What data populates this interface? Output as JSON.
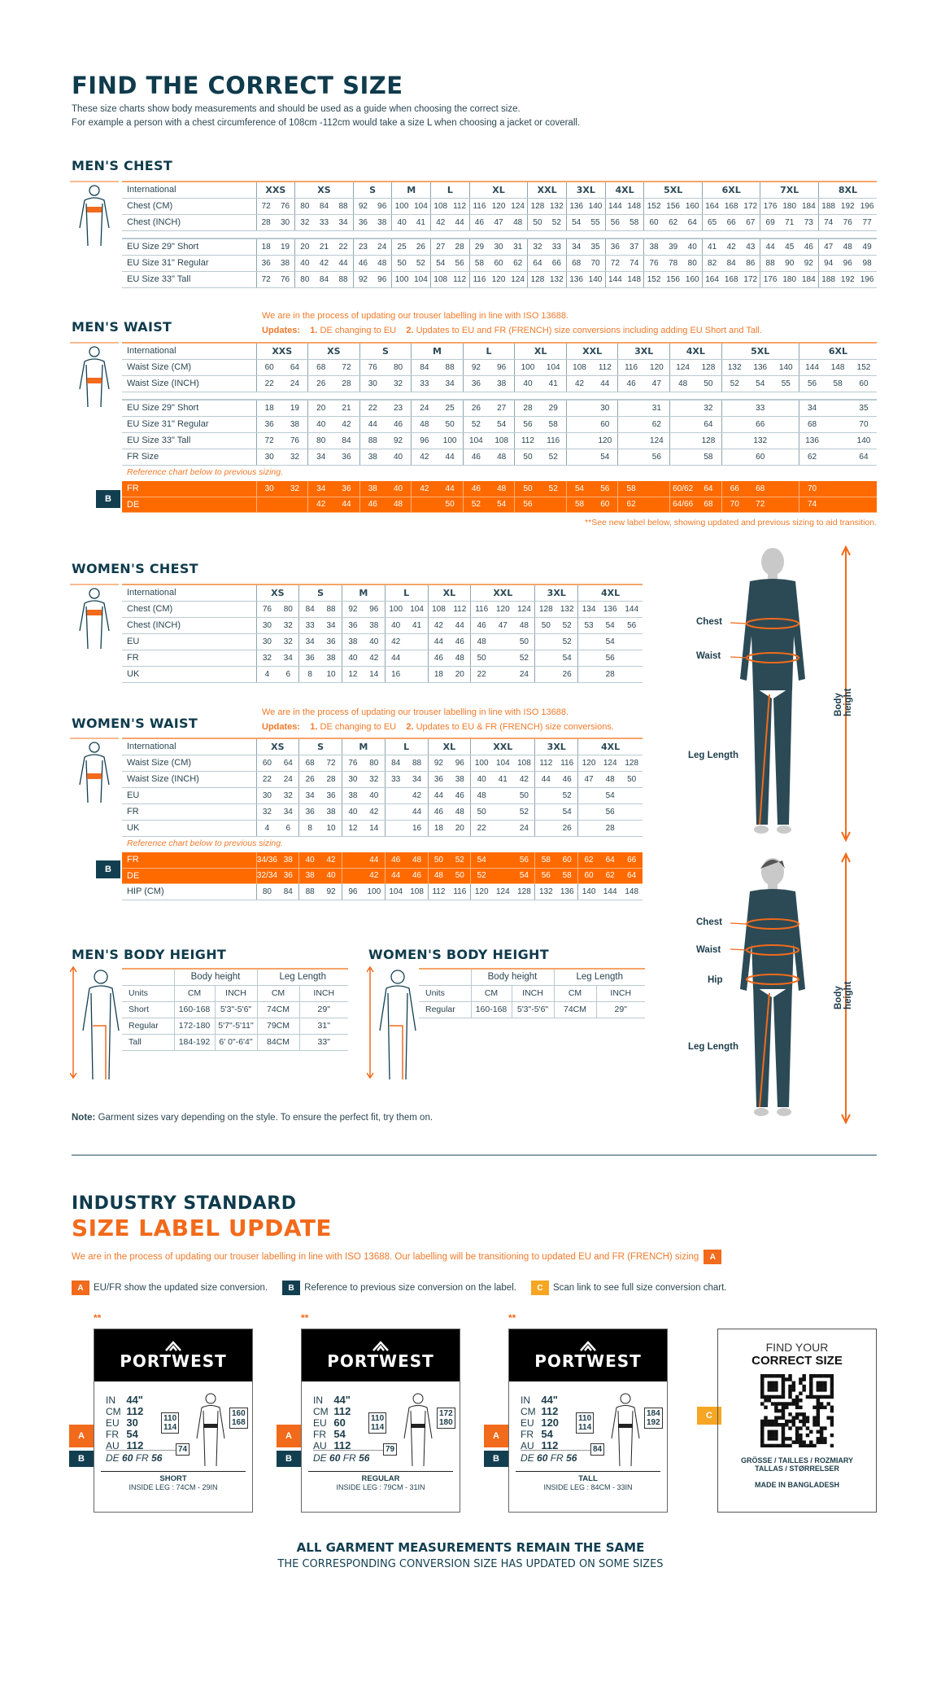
{
  "header": {
    "title": "FIND THE CORRECT SIZE",
    "intro_1": "These size charts show body measurements and should be used as a guide when choosing the correct size.",
    "intro_2": "For example a person with a chest circumference of 108cm -112cm would take a size L when choosing a jacket or coverall."
  },
  "update_note": {
    "line1": "We are in the process of updating our trouser labelling in line with ISO 13688.",
    "updates_label": "Updates:",
    "item1_num": "1.",
    "item1": "DE changing to EU",
    "item2_num": "2.",
    "men_item2": "Updates to EU and FR (FRENCH) size conversions including adding EU Short and Tall.",
    "women_item2": "Updates to EU & FR (FRENCH) size conversions."
  },
  "reference_text": "Reference chart below to previous sizing.",
  "transition_note": "**See new label below, showing updated and previous sizing to aid transition.",
  "colors": {
    "navy": "#123f50",
    "orange": "#ff6a00",
    "accent_orange": "#f26a1b",
    "yellow": "#f6a623"
  },
  "mens_chest": {
    "title": "MEN'S CHEST",
    "header_label": "International",
    "groups": [
      {
        "size": "XXS",
        "span": 2
      },
      {
        "size": "XS",
        "span": 3
      },
      {
        "size": "S",
        "span": 2
      },
      {
        "size": "M",
        "span": 2
      },
      {
        "size": "L",
        "span": 2
      },
      {
        "size": "XL",
        "span": 3
      },
      {
        "size": "XXL",
        "span": 2
      },
      {
        "size": "3XL",
        "span": 2
      },
      {
        "size": "4XL",
        "span": 2
      },
      {
        "size": "5XL",
        "span": 3
      },
      {
        "size": "6XL",
        "span": 3
      },
      {
        "size": "7XL",
        "span": 3
      },
      {
        "size": "8XL",
        "span": 3
      }
    ],
    "measurements": [
      {
        "label": "Chest (CM)",
        "values": [
          "72",
          "76",
          "80",
          "84",
          "88",
          "92",
          "96",
          "100",
          "104",
          "108",
          "112",
          "116",
          "120",
          "124",
          "128",
          "132",
          "136",
          "140",
          "144",
          "148",
          "152",
          "156",
          "160",
          "164",
          "168",
          "172",
          "176",
          "180",
          "184",
          "188",
          "192",
          "196"
        ]
      },
      {
        "label": "Chest (INCH)",
        "values": [
          "28",
          "30",
          "32",
          "33",
          "34",
          "36",
          "38",
          "40",
          "41",
          "42",
          "44",
          "46",
          "47",
          "48",
          "50",
          "52",
          "54",
          "55",
          "56",
          "58",
          "60",
          "62",
          "64",
          "65",
          "66",
          "67",
          "69",
          "71",
          "73",
          "74",
          "76",
          "77"
        ]
      }
    ],
    "conversions": [
      {
        "label": "EU Size 29\" Short",
        "values": [
          "18",
          "19",
          "20",
          "21",
          "22",
          "23",
          "24",
          "25",
          "26",
          "27",
          "28",
          "29",
          "30",
          "31",
          "32",
          "33",
          "34",
          "35",
          "36",
          "37",
          "38",
          "39",
          "40",
          "41",
          "42",
          "43",
          "44",
          "45",
          "46",
          "47",
          "48",
          "49"
        ]
      },
      {
        "label": "EU Size 31\" Regular",
        "values": [
          "36",
          "38",
          "40",
          "42",
          "44",
          "46",
          "48",
          "50",
          "52",
          "54",
          "56",
          "58",
          "60",
          "62",
          "64",
          "66",
          "68",
          "70",
          "72",
          "74",
          "76",
          "78",
          "80",
          "82",
          "84",
          "86",
          "88",
          "90",
          "92",
          "94",
          "96",
          "98"
        ]
      },
      {
        "label": "EU Size 33\" Tall",
        "values": [
          "72",
          "76",
          "80",
          "84",
          "88",
          "92",
          "96",
          "100",
          "104",
          "108",
          "112",
          "116",
          "120",
          "124",
          "128",
          "132",
          "136",
          "140",
          "144",
          "148",
          "152",
          "156",
          "160",
          "164",
          "168",
          "172",
          "176",
          "180",
          "184",
          "188",
          "192",
          "196"
        ]
      }
    ]
  },
  "mens_waist": {
    "title": "MEN'S WAIST",
    "header_label": "International",
    "groups": [
      {
        "size": "XXS",
        "span": 2
      },
      {
        "size": "XS",
        "span": 2
      },
      {
        "size": "S",
        "span": 2
      },
      {
        "size": "M",
        "span": 2
      },
      {
        "size": "L",
        "span": 2
      },
      {
        "size": "XL",
        "span": 2
      },
      {
        "size": "XXL",
        "span": 2
      },
      {
        "size": "3XL",
        "span": 2
      },
      {
        "size": "4XL",
        "span": 2
      },
      {
        "size": "5XL",
        "span": 3
      },
      {
        "size": "6XL",
        "span": 3
      }
    ],
    "measurements": [
      {
        "label": "Waist Size (CM)",
        "values": [
          "60",
          "64",
          "68",
          "72",
          "76",
          "80",
          "84",
          "88",
          "92",
          "96",
          "100",
          "104",
          "108",
          "112",
          "116",
          "120",
          "124",
          "128",
          "132",
          "136",
          "140",
          "144",
          "148",
          "152"
        ]
      },
      {
        "label": "Waist Size (INCH)",
        "values": [
          "22",
          "24",
          "26",
          "28",
          "30",
          "32",
          "33",
          "34",
          "36",
          "38",
          "40",
          "41",
          "42",
          "44",
          "46",
          "47",
          "48",
          "50",
          "52",
          "54",
          "55",
          "56",
          "58",
          "60"
        ]
      }
    ],
    "conversions": [
      {
        "label": "EU Size 29\" Short",
        "values": [
          "18",
          "19",
          "20",
          "21",
          "22",
          "23",
          "24",
          "25",
          "26",
          "27",
          "28",
          "29",
          "",
          "30",
          "",
          "31",
          "",
          "32",
          "",
          "33",
          "",
          "34",
          "",
          "35"
        ]
      },
      {
        "label": "EU Size 31\" Regular",
        "values": [
          "36",
          "38",
          "40",
          "42",
          "44",
          "46",
          "48",
          "50",
          "52",
          "54",
          "56",
          "58",
          "",
          "60",
          "",
          "62",
          "",
          "64",
          "",
          "66",
          "",
          "68",
          "",
          "70"
        ]
      },
      {
        "label": "EU Size 33\" Tall",
        "values": [
          "72",
          "76",
          "80",
          "84",
          "88",
          "92",
          "96",
          "100",
          "104",
          "108",
          "112",
          "116",
          "",
          "120",
          "",
          "124",
          "",
          "128",
          "",
          "132",
          "",
          "136",
          "",
          "140"
        ]
      },
      {
        "label": "FR Size",
        "values": [
          "30",
          "32",
          "34",
          "36",
          "38",
          "40",
          "42",
          "44",
          "46",
          "48",
          "50",
          "52",
          "",
          "54",
          "",
          "56",
          "",
          "58",
          "",
          "60",
          "",
          "62",
          "",
          "64"
        ]
      }
    ],
    "reference_badge": "B",
    "reference": [
      {
        "label": "FR",
        "values": [
          "30",
          "32",
          "34",
          "36",
          "38",
          "40",
          "42",
          "44",
          "46",
          "48",
          "50",
          "52",
          "54",
          "56",
          "58",
          "",
          "60/62",
          "64",
          "66",
          "68",
          "",
          "70",
          "",
          ""
        ]
      },
      {
        "label": "DE",
        "values": [
          "",
          "",
          "42",
          "44",
          "46",
          "48",
          "",
          "50",
          "52",
          "54",
          "56",
          "",
          "58",
          "60",
          "62",
          "",
          "64/66",
          "68",
          "70",
          "72",
          "",
          "74",
          "",
          ""
        ]
      }
    ]
  },
  "womens_chest": {
    "title": "WOMEN'S CHEST",
    "header_label": "International",
    "groups": [
      {
        "size": "XS",
        "span": 2
      },
      {
        "size": "S",
        "span": 2
      },
      {
        "size": "M",
        "span": 2
      },
      {
        "size": "L",
        "span": 2
      },
      {
        "size": "XL",
        "span": 2
      },
      {
        "size": "XXL",
        "span": 3
      },
      {
        "size": "3XL",
        "span": 2
      },
      {
        "size": "4XL",
        "span": 3
      }
    ],
    "measurements": [
      {
        "label": "Chest (CM)",
        "values": [
          "76",
          "80",
          "84",
          "88",
          "92",
          "96",
          "100",
          "104",
          "108",
          "112",
          "116",
          "120",
          "124",
          "128",
          "132",
          "134",
          "136",
          "144"
        ]
      },
      {
        "label": "Chest (INCH)",
        "values": [
          "30",
          "32",
          "33",
          "34",
          "36",
          "38",
          "40",
          "41",
          "42",
          "44",
          "46",
          "47",
          "48",
          "50",
          "52",
          "53",
          "54",
          "56"
        ]
      },
      {
        "label": "EU",
        "values": [
          "30",
          "32",
          "34",
          "36",
          "38",
          "40",
          "42",
          "",
          "44",
          "46",
          "48",
          "",
          "50",
          "",
          "52",
          "",
          "54",
          ""
        ]
      },
      {
        "label": "FR",
        "values": [
          "32",
          "34",
          "36",
          "38",
          "40",
          "42",
          "44",
          "",
          "46",
          "48",
          "50",
          "",
          "52",
          "",
          "54",
          "",
          "56",
          ""
        ]
      },
      {
        "label": "UK",
        "values": [
          "4",
          "6",
          "8",
          "10",
          "12",
          "14",
          "16",
          "",
          "18",
          "20",
          "22",
          "",
          "24",
          "",
          "26",
          "",
          "28",
          ""
        ]
      }
    ]
  },
  "womens_waist": {
    "title": "WOMEN'S WAIST",
    "header_label": "International",
    "groups": [
      {
        "size": "XS",
        "span": 2
      },
      {
        "size": "S",
        "span": 2
      },
      {
        "size": "M",
        "span": 2
      },
      {
        "size": "L",
        "span": 2
      },
      {
        "size": "XL",
        "span": 2
      },
      {
        "size": "XXL",
        "span": 3
      },
      {
        "size": "3XL",
        "span": 2
      },
      {
        "size": "4XL",
        "span": 3
      }
    ],
    "measurements": [
      {
        "label": "Waist Size (CM)",
        "values": [
          "60",
          "64",
          "68",
          "72",
          "76",
          "80",
          "84",
          "88",
          "92",
          "96",
          "100",
          "104",
          "108",
          "112",
          "116",
          "120",
          "124",
          "128"
        ]
      },
      {
        "label": "Waist Size (INCH)",
        "values": [
          "22",
          "24",
          "26",
          "28",
          "30",
          "32",
          "33",
          "34",
          "36",
          "38",
          "40",
          "41",
          "42",
          "44",
          "46",
          "47",
          "48",
          "50"
        ]
      },
      {
        "label": "EU",
        "values": [
          "30",
          "32",
          "34",
          "36",
          "38",
          "40",
          "",
          "42",
          "44",
          "46",
          "48",
          "",
          "50",
          "",
          "52",
          "",
          "54",
          ""
        ]
      },
      {
        "label": "FR",
        "values": [
          "32",
          "34",
          "36",
          "38",
          "40",
          "42",
          "",
          "44",
          "46",
          "48",
          "50",
          "",
          "52",
          "",
          "54",
          "",
          "56",
          ""
        ]
      },
      {
        "label": "UK",
        "values": [
          "4",
          "6",
          "8",
          "10",
          "12",
          "14",
          "",
          "16",
          "18",
          "20",
          "22",
          "",
          "24",
          "",
          "26",
          "",
          "28",
          ""
        ]
      }
    ],
    "reference_badge": "B",
    "reference": [
      {
        "label": "FR",
        "values": [
          "34/36",
          "38",
          "40",
          "42",
          "",
          "44",
          "46",
          "48",
          "50",
          "52",
          "54",
          "",
          "56",
          "58",
          "60",
          "62",
          "64",
          "66"
        ]
      },
      {
        "label": "DE",
        "values": [
          "32/34",
          "36",
          "38",
          "40",
          "",
          "42",
          "44",
          "46",
          "48",
          "50",
          "52",
          "",
          "54",
          "56",
          "58",
          "60",
          "62",
          "64"
        ]
      }
    ],
    "hip": {
      "label": "HIP (CM)",
      "values": [
        "80",
        "84",
        "88",
        "92",
        "96",
        "100",
        "104",
        "108",
        "112",
        "116",
        "120",
        "124",
        "128",
        "132",
        "136",
        "140",
        "144",
        "148"
      ]
    }
  },
  "figure_labels": {
    "man": {
      "chest": "Chest",
      "waist": "Waist",
      "leg": "Leg Length",
      "height": "Body height"
    },
    "woman": {
      "chest": "Chest",
      "waist": "Waist",
      "hip": "Hip",
      "leg": "Leg Length",
      "height": "Body height"
    }
  },
  "mens_body_height": {
    "title": "MEN'S BODY HEIGHT",
    "col_body": "Body height",
    "col_leg": "Leg Length",
    "units": [
      "Units",
      "CM",
      "INCH",
      "CM",
      "INCH"
    ],
    "rows": [
      [
        "Short",
        "160-168",
        "5'3\"-5'6\"",
        "74CM",
        "29\""
      ],
      [
        "Regular",
        "172-180",
        "5'7\"-5'11\"",
        "79CM",
        "31\""
      ],
      [
        "Tall",
        "184-192",
        "6' 0\"-6'4\"",
        "84CM",
        "33\""
      ]
    ]
  },
  "womens_body_height": {
    "title": "WOMEN'S BODY HEIGHT",
    "col_body": "Body height",
    "col_leg": "Leg Length",
    "units": [
      "Units",
      "CM",
      "INCH",
      "CM",
      "INCH"
    ],
    "rows": [
      [
        "Regular",
        "160-168",
        "5'3\"-5'6\"",
        "74CM",
        "29\""
      ]
    ]
  },
  "note": {
    "label": "Note:",
    "text": " Garment sizes vary depending on the style. To ensure the perfect fit, try them on."
  },
  "label_update": {
    "title_1": "INDUSTRY STANDARD",
    "title_2": "SIZE LABEL UPDATE",
    "sentence": "We are in the process of updating our trouser labelling in line with ISO 13688. Our labelling will be transitioning to updated EU and FR (FRENCH) sizing",
    "sentence_badge": "A",
    "legend": [
      {
        "badge": "A",
        "text": "EU/FR show the updated size conversion."
      },
      {
        "badge": "B",
        "text": "Reference to previous size conversion on the label."
      },
      {
        "badge": "C",
        "text": "Scan link to see full size conversion chart."
      }
    ],
    "labels": [
      {
        "stars": "**",
        "brand": "PORTWEST",
        "in": "44\"",
        "cm": "112",
        "eu": "30",
        "fr": "54",
        "au": "112",
        "de_line_de": "DE",
        "de_value": "60",
        "de_line_fr": "FR",
        "fr_value": "56",
        "chest_box": [
          "110",
          "114"
        ],
        "height_box": [
          "160",
          "168"
        ],
        "leg_box": "74",
        "fit": "SHORT",
        "inside_leg": "INSIDE LEG : 74CM - 29IN"
      },
      {
        "stars": "**",
        "brand": "PORTWEST",
        "in": "44\"",
        "cm": "112",
        "eu": "60",
        "fr": "54",
        "au": "112",
        "de_line_de": "DE",
        "de_value": "60",
        "de_line_fr": "FR",
        "fr_value": "56",
        "chest_box": [
          "110",
          "114"
        ],
        "height_box": [
          "172",
          "180"
        ],
        "leg_box": "79",
        "fit": "REGULAR",
        "inside_leg": "INSIDE LEG : 79CM - 31IN"
      },
      {
        "stars": "**",
        "brand": "PORTWEST",
        "in": "44\"",
        "cm": "112",
        "eu": "120",
        "fr": "54",
        "au": "112",
        "de_line_de": "DE",
        "de_value": "60",
        "de_line_fr": "FR",
        "fr_value": "56",
        "chest_box": [
          "110",
          "114"
        ],
        "height_box": [
          "184",
          "192"
        ],
        "leg_box": "84",
        "fit": "TALL",
        "inside_leg": "INSIDE LEG : 84CM - 33IN"
      }
    ],
    "row_keys": [
      "IN",
      "CM",
      "EU",
      "FR",
      "AU"
    ],
    "qr_card": {
      "badge": "C",
      "find": "FIND YOUR",
      "correct": "CORRECT SIZE",
      "langs_1": "GRÖSSE / TAILLES / ROZMIARY",
      "langs_2": "TALLAS  / STØRRELSER",
      "made_in": "MADE IN BANGLADESH"
    }
  },
  "footer": {
    "line1": "ALL GARMENT MEASUREMENTS REMAIN THE SAME",
    "line2": "THE CORRESPONDING CONVERSION SIZE HAS UPDATED ON SOME SIZES"
  }
}
